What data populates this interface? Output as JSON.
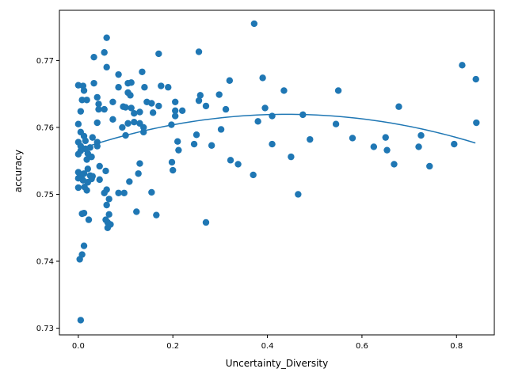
{
  "chart_data": {
    "type": "scatter",
    "xlabel": "Uncertainty_Diversity",
    "ylabel": "accuracy",
    "xlim": [
      -0.04,
      0.88
    ],
    "ylim": [
      0.729,
      0.7775
    ],
    "x_ticks": [
      0.0,
      0.2,
      0.4,
      0.6,
      0.8
    ],
    "x_tick_labels": [
      "0.0",
      "0.2",
      "0.4",
      "0.6",
      "0.8"
    ],
    "y_ticks": [
      0.73,
      0.74,
      0.75,
      0.76,
      0.77
    ],
    "y_tick_labels": [
      "0.73",
      "0.74",
      "0.75",
      "0.76",
      "0.77"
    ],
    "grid": false,
    "marker_color": "#1f77b4",
    "line_color": "#1f77b4",
    "points": [
      [
        0.372,
        0.7755
      ],
      [
        0.06,
        0.7734
      ],
      [
        0.033,
        0.7705
      ],
      [
        0.055,
        0.7712
      ],
      [
        0.17,
        0.771
      ],
      [
        0.255,
        0.7713
      ],
      [
        0.812,
        0.7693
      ],
      [
        0.841,
        0.7672
      ],
      [
        0.06,
        0.769
      ],
      [
        0.135,
        0.7683
      ],
      [
        0.085,
        0.7679
      ],
      [
        0.39,
        0.7674
      ],
      [
        0.0,
        0.7663
      ],
      [
        0.01,
        0.7662
      ],
      [
        0.033,
        0.7666
      ],
      [
        0.105,
        0.7666
      ],
      [
        0.112,
        0.7667
      ],
      [
        0.175,
        0.7662
      ],
      [
        0.19,
        0.766
      ],
      [
        0.085,
        0.766
      ],
      [
        0.14,
        0.766
      ],
      [
        0.435,
        0.7655
      ],
      [
        0.55,
        0.7655
      ],
      [
        0.012,
        0.7655
      ],
      [
        0.105,
        0.7652
      ],
      [
        0.11,
        0.7648
      ],
      [
        0.04,
        0.7645
      ],
      [
        0.258,
        0.7648
      ],
      [
        0.298,
        0.7649
      ],
      [
        0.32,
        0.767
      ],
      [
        0.008,
        0.7641
      ],
      [
        0.018,
        0.7641
      ],
      [
        0.073,
        0.7638
      ],
      [
        0.145,
        0.7638
      ],
      [
        0.155,
        0.7636
      ],
      [
        0.205,
        0.7638
      ],
      [
        0.255,
        0.764
      ],
      [
        0.27,
        0.7632
      ],
      [
        0.043,
        0.7635
      ],
      [
        0.17,
        0.7632
      ],
      [
        0.678,
        0.7631
      ],
      [
        0.095,
        0.7631
      ],
      [
        0.112,
        0.7629
      ],
      [
        0.395,
        0.7629
      ],
      [
        0.043,
        0.7627
      ],
      [
        0.055,
        0.7627
      ],
      [
        0.1,
        0.763
      ],
      [
        0.13,
        0.7623
      ],
      [
        0.158,
        0.7622
      ],
      [
        0.205,
        0.7625
      ],
      [
        0.22,
        0.7625
      ],
      [
        0.312,
        0.7627
      ],
      [
        0.005,
        0.7624
      ],
      [
        0.118,
        0.7621
      ],
      [
        0.475,
        0.7619
      ],
      [
        0.41,
        0.7617
      ],
      [
        0.205,
        0.7617
      ],
      [
        0.073,
        0.7612
      ],
      [
        0.105,
        0.7606
      ],
      [
        0.0,
        0.7605
      ],
      [
        0.04,
        0.7607
      ],
      [
        0.118,
        0.7608
      ],
      [
        0.13,
        0.7606
      ],
      [
        0.197,
        0.7604
      ],
      [
        0.38,
        0.7609
      ],
      [
        0.545,
        0.7605
      ],
      [
        0.842,
        0.7607
      ],
      [
        0.093,
        0.76
      ],
      [
        0.138,
        0.76
      ],
      [
        0.302,
        0.7597
      ],
      [
        0.005,
        0.7593
      ],
      [
        0.138,
        0.7593
      ],
      [
        0.1,
        0.7588
      ],
      [
        0.25,
        0.7589
      ],
      [
        0.49,
        0.7582
      ],
      [
        0.58,
        0.7584
      ],
      [
        0.65,
        0.7585
      ],
      [
        0.725,
        0.7588
      ],
      [
        0.012,
        0.7587
      ],
      [
        0.03,
        0.7585
      ],
      [
        0.21,
        0.7579
      ],
      [
        0.245,
        0.7575
      ],
      [
        0.41,
        0.7575
      ],
      [
        0.0,
        0.7578
      ],
      [
        0.015,
        0.758
      ],
      [
        0.04,
        0.7578
      ],
      [
        0.005,
        0.7572
      ],
      [
        0.025,
        0.757
      ],
      [
        0.04,
        0.7572
      ],
      [
        0.015,
        0.7568
      ],
      [
        0.282,
        0.7573
      ],
      [
        0.625,
        0.7571
      ],
      [
        0.72,
        0.7571
      ],
      [
        0.795,
        0.7575
      ],
      [
        0.005,
        0.7565
      ],
      [
        0.0,
        0.756
      ],
      [
        0.02,
        0.7561
      ],
      [
        0.212,
        0.7566
      ],
      [
        0.653,
        0.7566
      ],
      [
        0.45,
        0.7556
      ],
      [
        0.028,
        0.7556
      ],
      [
        0.018,
        0.7552
      ],
      [
        0.322,
        0.7551
      ],
      [
        0.198,
        0.7548
      ],
      [
        0.13,
        0.7546
      ],
      [
        0.338,
        0.7545
      ],
      [
        0.668,
        0.7545
      ],
      [
        0.045,
        0.7542
      ],
      [
        0.743,
        0.7542
      ],
      [
        0.02,
        0.7538
      ],
      [
        0.058,
        0.7535
      ],
      [
        0.2,
        0.7536
      ],
      [
        0.0,
        0.7533
      ],
      [
        0.012,
        0.7531
      ],
      [
        0.007,
        0.7528
      ],
      [
        0.025,
        0.7528
      ],
      [
        0.127,
        0.7531
      ],
      [
        0.37,
        0.7529
      ],
      [
        0.0,
        0.7524
      ],
      [
        0.03,
        0.7527
      ],
      [
        0.01,
        0.7521
      ],
      [
        0.045,
        0.7522
      ],
      [
        0.02,
        0.7518
      ],
      [
        0.028,
        0.7523
      ],
      [
        0.108,
        0.7519
      ],
      [
        0.0,
        0.751
      ],
      [
        0.013,
        0.7511
      ],
      [
        0.018,
        0.7506
      ],
      [
        0.06,
        0.7507
      ],
      [
        0.055,
        0.7502
      ],
      [
        0.085,
        0.7502
      ],
      [
        0.097,
        0.7502
      ],
      [
        0.155,
        0.7503
      ],
      [
        0.465,
        0.75
      ],
      [
        0.065,
        0.7493
      ],
      [
        0.06,
        0.7484
      ],
      [
        0.012,
        0.7472
      ],
      [
        0.008,
        0.7471
      ],
      [
        0.123,
        0.7474
      ],
      [
        0.065,
        0.747
      ],
      [
        0.165,
        0.7469
      ],
      [
        0.022,
        0.7462
      ],
      [
        0.058,
        0.7462
      ],
      [
        0.062,
        0.7458
      ],
      [
        0.27,
        0.7458
      ],
      [
        0.068,
        0.7455
      ],
      [
        0.062,
        0.745
      ],
      [
        0.012,
        0.7423
      ],
      [
        0.008,
        0.741
      ],
      [
        0.003,
        0.7403
      ],
      [
        0.005,
        0.7312
      ]
    ],
    "trend": {
      "type": "quadratic",
      "x_range": [
        0.0,
        0.84
      ],
      "coefficients": [
        0.7567,
        0.02383,
        -0.02699
      ]
    }
  }
}
